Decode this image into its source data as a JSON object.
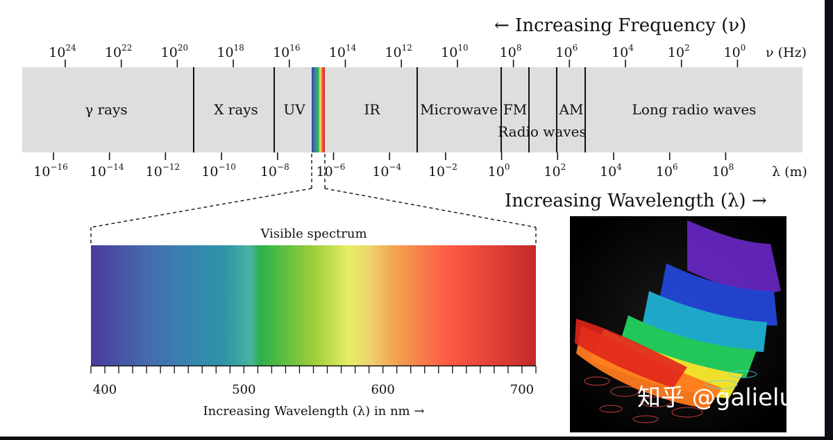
{
  "frequency_axis": {
    "title": "← Increasing Frequency (ν)",
    "unit_label": "ν (Hz)",
    "ticks": [
      {
        "base": "10",
        "exp": "24"
      },
      {
        "base": "10",
        "exp": "22"
      },
      {
        "base": "10",
        "exp": "20"
      },
      {
        "base": "10",
        "exp": "18"
      },
      {
        "base": "10",
        "exp": "16"
      },
      {
        "base": "10",
        "exp": "14"
      },
      {
        "base": "10",
        "exp": "12"
      },
      {
        "base": "10",
        "exp": "10"
      },
      {
        "base": "10",
        "exp": "8"
      },
      {
        "base": "10",
        "exp": "6"
      },
      {
        "base": "10",
        "exp": "4"
      },
      {
        "base": "10",
        "exp": "2"
      },
      {
        "base": "10",
        "exp": "0"
      }
    ]
  },
  "wavelength_axis": {
    "title": "Increasing Wavelength (λ) →",
    "unit_label": "λ (m)",
    "ticks": [
      {
        "base": "10",
        "exp": "−16"
      },
      {
        "base": "10",
        "exp": "−14"
      },
      {
        "base": "10",
        "exp": "−12"
      },
      {
        "base": "10",
        "exp": "−10"
      },
      {
        "base": "10",
        "exp": "−8"
      },
      {
        "base": "10",
        "exp": "−6"
      },
      {
        "base": "10",
        "exp": "−4"
      },
      {
        "base": "10",
        "exp": "−2"
      },
      {
        "base": "10",
        "exp": "0"
      },
      {
        "base": "10",
        "exp": "2"
      },
      {
        "base": "10",
        "exp": "4"
      },
      {
        "base": "10",
        "exp": "6"
      },
      {
        "base": "10",
        "exp": "8"
      }
    ]
  },
  "bands": {
    "gamma": "γ rays",
    "xray": "X rays",
    "uv": "UV",
    "ir": "IR",
    "microwave": "Microwave",
    "fm": "FM",
    "am": "AM",
    "radio": "Radio waves",
    "long_radio": "Long radio waves"
  },
  "visible": {
    "title": "Visible spectrum",
    "axis_title": "Increasing Wavelength (λ) in nm →",
    "tick_labels": [
      "400",
      "500",
      "600",
      "700"
    ],
    "range_nm": [
      390,
      710
    ],
    "colors": [
      "#4a3a9c",
      "#3a7fb0",
      "#2e94a8",
      "#2bb04a",
      "#9ccf3a",
      "#e7ee66",
      "#f0a650",
      "#ff5a44",
      "#c4282a"
    ]
  },
  "watermark": "知乎 @galieluo",
  "colors": {
    "band_fill": "#dedede",
    "page_bg": "#ffffff",
    "frame_bg": "#0b0c10"
  }
}
